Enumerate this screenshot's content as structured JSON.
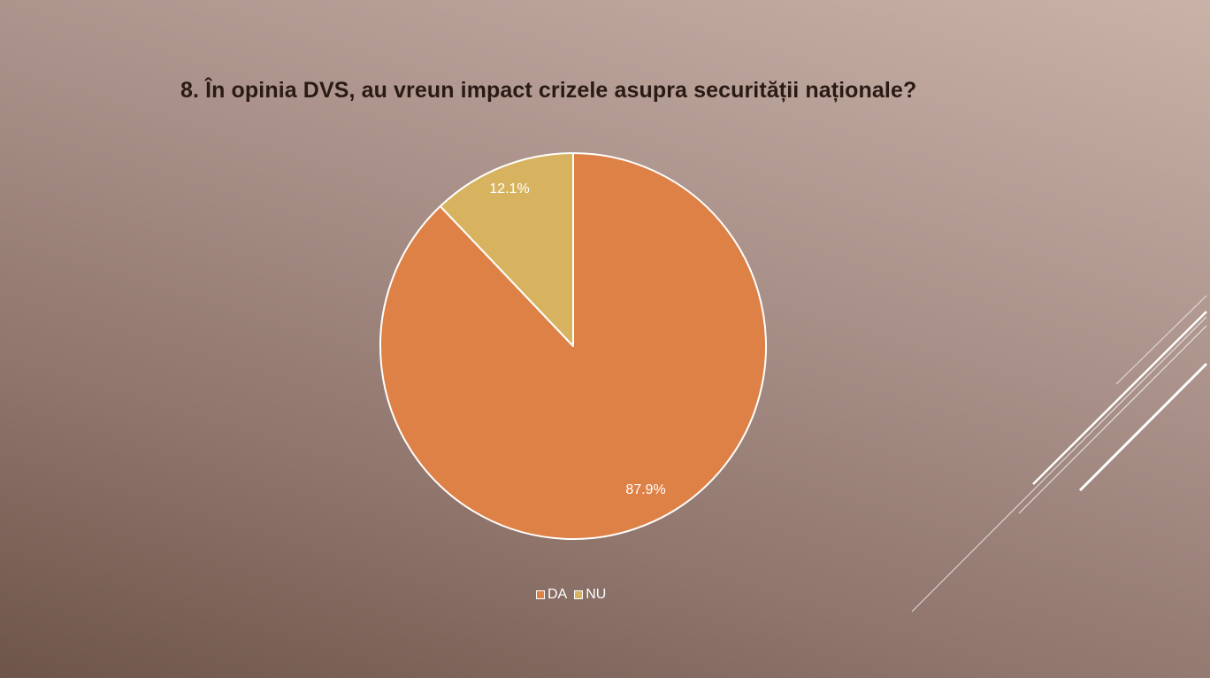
{
  "slide": {
    "title": "8. În opinia DVS, au vreun impact crizele asupra securității naționale?"
  },
  "chart_data": {
    "type": "pie",
    "title": "8. În opinia DVS, au vreun impact crizele asupra securității naționale?",
    "categories": [
      "DA",
      "NU"
    ],
    "values": [
      87.9,
      12.1
    ],
    "labels": [
      "87.9%",
      "12.1%"
    ],
    "colors": [
      "#de8147",
      "#d7b35f"
    ],
    "slice_border_color": "#ffffff",
    "legend_placement": "bottom"
  },
  "legend": {
    "items": [
      {
        "label": "DA",
        "color": "#de8147"
      },
      {
        "label": "NU",
        "color": "#d7b35f"
      }
    ]
  },
  "theme": {
    "title_color": "#2a1a14",
    "line_color": "#ffffff"
  }
}
